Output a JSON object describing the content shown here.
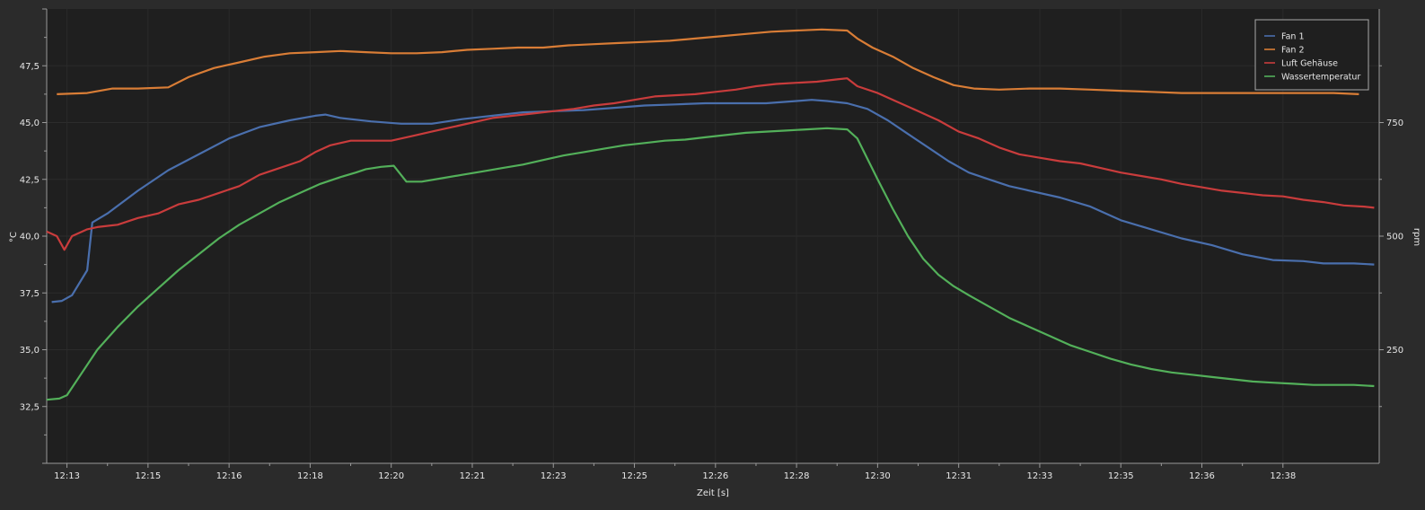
{
  "chart_data": {
    "type": "line",
    "xlabel": "Zeit [s]",
    "ylabel_left": "°C",
    "ylabel_right": "rpm",
    "ylim_left": [
      30,
      50
    ],
    "ylim_right": [
      0,
      1000
    ],
    "x_range_minutes": [
      12.6,
      38.9
    ],
    "x_ticks": [
      {
        "m": 13.0,
        "label": "12:13"
      },
      {
        "m": 14.6,
        "label": "12:15"
      },
      {
        "m": 16.2,
        "label": "12:16"
      },
      {
        "m": 17.8,
        "label": "12:18"
      },
      {
        "m": 19.4,
        "label": "12:20"
      },
      {
        "m": 21.0,
        "label": "12:21"
      },
      {
        "m": 22.6,
        "label": "12:23"
      },
      {
        "m": 24.2,
        "label": "12:25"
      },
      {
        "m": 25.8,
        "label": "12:26"
      },
      {
        "m": 27.4,
        "label": "12:28"
      },
      {
        "m": 29.0,
        "label": "12:30"
      },
      {
        "m": 30.6,
        "label": "12:31"
      },
      {
        "m": 32.2,
        "label": "12:33"
      },
      {
        "m": 33.8,
        "label": "12:35"
      },
      {
        "m": 35.4,
        "label": "12:36"
      },
      {
        "m": 37.0,
        "label": "12:38"
      }
    ],
    "y_ticks_left": [
      "32,5",
      "35,0",
      "37,5",
      "40,0",
      "42,5",
      "45,0",
      "47,5"
    ],
    "y_ticks_right": [
      "250",
      "500",
      "750"
    ],
    "legend_position": "top-right",
    "series": [
      {
        "name": "Fan 1",
        "color": "#4a6fad",
        "axis": "left",
        "points": [
          [
            12.7,
            37.1
          ],
          [
            12.9,
            37.15
          ],
          [
            13.1,
            37.4
          ],
          [
            13.4,
            38.5
          ],
          [
            13.5,
            40.6
          ],
          [
            13.8,
            41.0
          ],
          [
            14.4,
            42.0
          ],
          [
            15.0,
            42.9
          ],
          [
            15.6,
            43.6
          ],
          [
            16.2,
            44.3
          ],
          [
            16.8,
            44.8
          ],
          [
            17.4,
            45.1
          ],
          [
            17.9,
            45.3
          ],
          [
            18.1,
            45.35
          ],
          [
            18.4,
            45.2
          ],
          [
            19.0,
            45.05
          ],
          [
            19.6,
            44.95
          ],
          [
            20.2,
            44.95
          ],
          [
            20.8,
            45.15
          ],
          [
            21.4,
            45.3
          ],
          [
            22.0,
            45.45
          ],
          [
            22.6,
            45.5
          ],
          [
            23.2,
            45.55
          ],
          [
            23.8,
            45.65
          ],
          [
            24.4,
            45.75
          ],
          [
            25.0,
            45.8
          ],
          [
            25.6,
            45.85
          ],
          [
            26.2,
            45.85
          ],
          [
            26.8,
            45.85
          ],
          [
            27.4,
            45.95
          ],
          [
            27.7,
            46.0
          ],
          [
            28.0,
            45.95
          ],
          [
            28.4,
            45.85
          ],
          [
            28.8,
            45.6
          ],
          [
            29.2,
            45.1
          ],
          [
            29.6,
            44.5
          ],
          [
            30.0,
            43.9
          ],
          [
            30.4,
            43.3
          ],
          [
            30.8,
            42.8
          ],
          [
            31.2,
            42.5
          ],
          [
            31.6,
            42.2
          ],
          [
            32.0,
            42.0
          ],
          [
            32.6,
            41.7
          ],
          [
            33.2,
            41.3
          ],
          [
            33.8,
            40.7
          ],
          [
            34.4,
            40.3
          ],
          [
            35.0,
            39.9
          ],
          [
            35.6,
            39.6
          ],
          [
            36.2,
            39.2
          ],
          [
            36.8,
            38.95
          ],
          [
            37.4,
            38.9
          ],
          [
            37.8,
            38.8
          ],
          [
            38.4,
            38.8
          ],
          [
            38.8,
            38.75
          ]
        ]
      },
      {
        "name": "Fan 2",
        "color": "#d97d36",
        "axis": "left",
        "points": [
          [
            12.8,
            46.25
          ],
          [
            13.4,
            46.3
          ],
          [
            13.9,
            46.5
          ],
          [
            14.4,
            46.5
          ],
          [
            15.0,
            46.55
          ],
          [
            15.4,
            47.0
          ],
          [
            15.9,
            47.4
          ],
          [
            16.4,
            47.65
          ],
          [
            16.9,
            47.9
          ],
          [
            17.4,
            48.05
          ],
          [
            17.9,
            48.1
          ],
          [
            18.4,
            48.15
          ],
          [
            18.9,
            48.1
          ],
          [
            19.4,
            48.05
          ],
          [
            19.9,
            48.05
          ],
          [
            20.4,
            48.1
          ],
          [
            20.9,
            48.2
          ],
          [
            21.4,
            48.25
          ],
          [
            21.9,
            48.3
          ],
          [
            22.4,
            48.3
          ],
          [
            22.9,
            48.4
          ],
          [
            23.4,
            48.45
          ],
          [
            23.9,
            48.5
          ],
          [
            24.4,
            48.55
          ],
          [
            24.9,
            48.6
          ],
          [
            25.4,
            48.7
          ],
          [
            25.9,
            48.8
          ],
          [
            26.4,
            48.9
          ],
          [
            26.9,
            49.0
          ],
          [
            27.4,
            49.05
          ],
          [
            27.9,
            49.1
          ],
          [
            28.4,
            49.05
          ],
          [
            28.6,
            48.7
          ],
          [
            28.9,
            48.3
          ],
          [
            29.3,
            47.9
          ],
          [
            29.7,
            47.4
          ],
          [
            30.1,
            47.0
          ],
          [
            30.5,
            46.65
          ],
          [
            30.9,
            46.5
          ],
          [
            31.4,
            46.45
          ],
          [
            32.0,
            46.5
          ],
          [
            32.6,
            46.5
          ],
          [
            33.2,
            46.45
          ],
          [
            33.8,
            46.4
          ],
          [
            34.4,
            46.35
          ],
          [
            35.0,
            46.3
          ],
          [
            35.6,
            46.3
          ],
          [
            36.2,
            46.3
          ],
          [
            36.8,
            46.3
          ],
          [
            37.4,
            46.3
          ],
          [
            38.0,
            46.3
          ],
          [
            38.5,
            46.25
          ]
        ]
      },
      {
        "name": "Luft Gehäuse",
        "color": "#c93c3c",
        "axis": "left",
        "points": [
          [
            12.6,
            40.2
          ],
          [
            12.8,
            40.0
          ],
          [
            12.95,
            39.4
          ],
          [
            13.1,
            40.0
          ],
          [
            13.4,
            40.3
          ],
          [
            13.6,
            40.4
          ],
          [
            14.0,
            40.5
          ],
          [
            14.4,
            40.8
          ],
          [
            14.8,
            41.0
          ],
          [
            15.2,
            41.4
          ],
          [
            15.6,
            41.6
          ],
          [
            16.0,
            41.9
          ],
          [
            16.4,
            42.2
          ],
          [
            16.8,
            42.7
          ],
          [
            17.2,
            43.0
          ],
          [
            17.6,
            43.3
          ],
          [
            17.9,
            43.7
          ],
          [
            18.2,
            44.0
          ],
          [
            18.6,
            44.2
          ],
          [
            19.0,
            44.2
          ],
          [
            19.4,
            44.2
          ],
          [
            19.8,
            44.4
          ],
          [
            20.2,
            44.6
          ],
          [
            20.6,
            44.8
          ],
          [
            21.0,
            45.0
          ],
          [
            21.4,
            45.2
          ],
          [
            21.8,
            45.3
          ],
          [
            22.2,
            45.4
          ],
          [
            22.6,
            45.5
          ],
          [
            23.0,
            45.6
          ],
          [
            23.4,
            45.75
          ],
          [
            23.8,
            45.85
          ],
          [
            24.2,
            46.0
          ],
          [
            24.6,
            46.15
          ],
          [
            25.0,
            46.2
          ],
          [
            25.4,
            46.25
          ],
          [
            25.8,
            46.35
          ],
          [
            26.2,
            46.45
          ],
          [
            26.6,
            46.6
          ],
          [
            27.0,
            46.7
          ],
          [
            27.4,
            46.75
          ],
          [
            27.8,
            46.8
          ],
          [
            28.2,
            46.9
          ],
          [
            28.4,
            46.95
          ],
          [
            28.6,
            46.6
          ],
          [
            29.0,
            46.3
          ],
          [
            29.4,
            45.9
          ],
          [
            29.8,
            45.5
          ],
          [
            30.2,
            45.1
          ],
          [
            30.6,
            44.6
          ],
          [
            31.0,
            44.3
          ],
          [
            31.4,
            43.9
          ],
          [
            31.8,
            43.6
          ],
          [
            32.2,
            43.45
          ],
          [
            32.6,
            43.3
          ],
          [
            33.0,
            43.2
          ],
          [
            33.4,
            43.0
          ],
          [
            33.8,
            42.8
          ],
          [
            34.2,
            42.65
          ],
          [
            34.6,
            42.5
          ],
          [
            35.0,
            42.3
          ],
          [
            35.4,
            42.15
          ],
          [
            35.8,
            42.0
          ],
          [
            36.2,
            41.9
          ],
          [
            36.6,
            41.8
          ],
          [
            37.0,
            41.75
          ],
          [
            37.4,
            41.6
          ],
          [
            37.8,
            41.5
          ],
          [
            38.2,
            41.35
          ],
          [
            38.6,
            41.3
          ],
          [
            38.8,
            41.25
          ]
        ]
      },
      {
        "name": "Wassertemperatur",
        "color": "#53b05a",
        "axis": "left",
        "points": [
          [
            12.6,
            32.8
          ],
          [
            12.85,
            32.85
          ],
          [
            13.0,
            33.0
          ],
          [
            13.3,
            34.0
          ],
          [
            13.6,
            35.0
          ],
          [
            14.0,
            36.0
          ],
          [
            14.4,
            36.9
          ],
          [
            14.8,
            37.7
          ],
          [
            15.2,
            38.5
          ],
          [
            15.6,
            39.2
          ],
          [
            16.0,
            39.9
          ],
          [
            16.4,
            40.5
          ],
          [
            16.8,
            41.0
          ],
          [
            17.2,
            41.5
          ],
          [
            17.6,
            41.9
          ],
          [
            18.0,
            42.3
          ],
          [
            18.4,
            42.6
          ],
          [
            18.7,
            42.8
          ],
          [
            18.9,
            42.95
          ],
          [
            19.2,
            43.05
          ],
          [
            19.45,
            43.1
          ],
          [
            19.7,
            42.4
          ],
          [
            20.0,
            42.4
          ],
          [
            20.4,
            42.55
          ],
          [
            20.8,
            42.7
          ],
          [
            21.2,
            42.85
          ],
          [
            21.6,
            43.0
          ],
          [
            22.0,
            43.15
          ],
          [
            22.4,
            43.35
          ],
          [
            22.8,
            43.55
          ],
          [
            23.2,
            43.7
          ],
          [
            23.6,
            43.85
          ],
          [
            24.0,
            44.0
          ],
          [
            24.4,
            44.1
          ],
          [
            24.8,
            44.2
          ],
          [
            25.2,
            44.25
          ],
          [
            25.6,
            44.35
          ],
          [
            26.0,
            44.45
          ],
          [
            26.4,
            44.55
          ],
          [
            26.8,
            44.6
          ],
          [
            27.2,
            44.65
          ],
          [
            27.6,
            44.7
          ],
          [
            28.0,
            44.75
          ],
          [
            28.4,
            44.7
          ],
          [
            28.6,
            44.3
          ],
          [
            28.8,
            43.4
          ],
          [
            29.0,
            42.5
          ],
          [
            29.3,
            41.2
          ],
          [
            29.6,
            40.0
          ],
          [
            29.9,
            39.0
          ],
          [
            30.2,
            38.3
          ],
          [
            30.5,
            37.8
          ],
          [
            30.8,
            37.4
          ],
          [
            31.2,
            36.9
          ],
          [
            31.6,
            36.4
          ],
          [
            32.0,
            36.0
          ],
          [
            32.4,
            35.6
          ],
          [
            32.8,
            35.2
          ],
          [
            33.2,
            34.9
          ],
          [
            33.6,
            34.6
          ],
          [
            34.0,
            34.35
          ],
          [
            34.4,
            34.15
          ],
          [
            34.8,
            34.0
          ],
          [
            35.2,
            33.9
          ],
          [
            35.6,
            33.8
          ],
          [
            36.0,
            33.7
          ],
          [
            36.4,
            33.6
          ],
          [
            36.8,
            33.55
          ],
          [
            37.2,
            33.5
          ],
          [
            37.6,
            33.45
          ],
          [
            38.0,
            33.45
          ],
          [
            38.4,
            33.45
          ],
          [
            38.8,
            33.4
          ]
        ]
      }
    ]
  }
}
